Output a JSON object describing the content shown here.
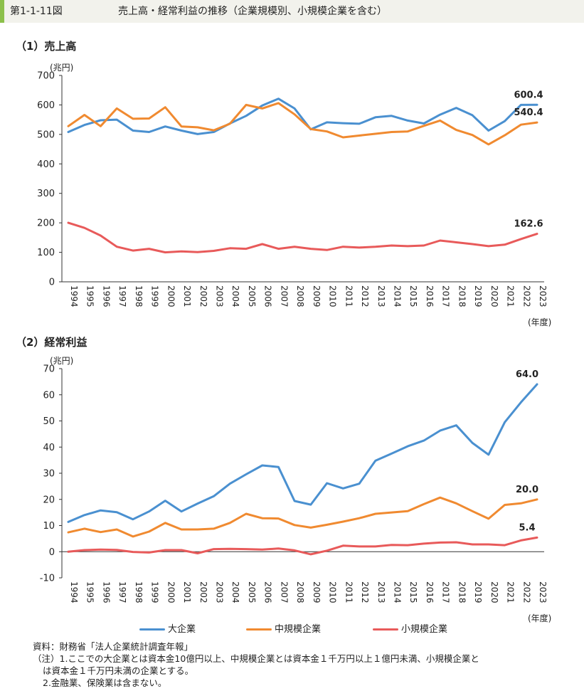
{
  "header": {
    "figure_label": "第1-1-11図",
    "figure_title": "売上高・経常利益の推移（企業規模別、小規模企業を含む）"
  },
  "colors": {
    "large": "#4a90d0",
    "medium": "#f08a30",
    "small": "#e85a5a",
    "header_bg": "#f2f2ec",
    "accent": "#8cc04b"
  },
  "legend": [
    {
      "key": "large",
      "label": "大企業"
    },
    {
      "key": "medium",
      "label": "中規模企業"
    },
    {
      "key": "small",
      "label": "小規模企業"
    }
  ],
  "notes": {
    "source": "資料：財務省「法人企業統計調査年報」",
    "note1a": "（注）1.ここでの大企業とは資本金10億円以上、中規模企業とは資本金１千万円以上１億円未満、小規模企業と",
    "note1b": "は資本金１千万円未満の企業とする。",
    "note2": "2.金融業、保険業は含まない。"
  },
  "chart_data": [
    {
      "id": "sales",
      "type": "line",
      "title": "（1）売上高",
      "ylabel": "(兆円)",
      "xlabel": "(年度)",
      "ylim": [
        0,
        700
      ],
      "yticks": [
        0,
        100,
        200,
        300,
        400,
        500,
        600,
        700
      ],
      "categories": [
        "1994",
        "1995",
        "1996",
        "1997",
        "1998",
        "1999",
        "2000",
        "2001",
        "2002",
        "2003",
        "2004",
        "2005",
        "2006",
        "2007",
        "2008",
        "2009",
        "2010",
        "2011",
        "2012",
        "2013",
        "2014",
        "2015",
        "2016",
        "2017",
        "2018",
        "2019",
        "2020",
        "2021",
        "2022",
        "2023"
      ],
      "series": [
        {
          "key": "large",
          "name": "大企業",
          "end_label": "600.4",
          "values": [
            508,
            532,
            548,
            550,
            513,
            508,
            527,
            513,
            501,
            508,
            537,
            563,
            598,
            621,
            588,
            517,
            541,
            538,
            536,
            558,
            563,
            547,
            537,
            567,
            590,
            565,
            513,
            545,
            600,
            600.4
          ]
        },
        {
          "key": "medium",
          "name": "中規模企業",
          "end_label": "540.4",
          "values": [
            528,
            566,
            528,
            588,
            553,
            554,
            592,
            527,
            524,
            514,
            536,
            600,
            588,
            606,
            568,
            518,
            510,
            490,
            496,
            502,
            508,
            510,
            529,
            547,
            515,
            498,
            466,
            497,
            533,
            540.4
          ]
        },
        {
          "key": "small",
          "name": "小規模企業",
          "end_label": "162.6",
          "values": [
            200,
            183,
            157,
            119,
            106,
            112,
            100,
            103,
            101,
            105,
            114,
            112,
            128,
            112,
            119,
            112,
            108,
            119,
            116,
            119,
            123,
            121,
            123,
            140,
            134,
            128,
            121,
            126,
            145,
            162.6
          ]
        }
      ]
    },
    {
      "id": "profit",
      "type": "line",
      "title": "（2）経常利益",
      "ylabel": "(兆円)",
      "xlabel": "(年度)",
      "ylim": [
        -10,
        70
      ],
      "yticks": [
        -10,
        0,
        10,
        20,
        30,
        40,
        50,
        60,
        70
      ],
      "categories": [
        "1994",
        "1995",
        "1996",
        "1997",
        "1998",
        "1999",
        "2000",
        "2001",
        "2002",
        "2003",
        "2004",
        "2005",
        "2006",
        "2007",
        "2008",
        "2009",
        "2010",
        "2011",
        "2012",
        "2013",
        "2014",
        "2015",
        "2016",
        "2017",
        "2018",
        "2019",
        "2020",
        "2021",
        "2022",
        "2023"
      ],
      "series": [
        {
          "key": "large",
          "name": "大企業",
          "end_label": "64.0",
          "values": [
            11.4,
            14.0,
            15.8,
            15.1,
            12.4,
            15.4,
            19.5,
            15.4,
            18.4,
            21.2,
            26.0,
            29.6,
            33.0,
            32.4,
            19.4,
            18.0,
            26.2,
            24.2,
            26.0,
            34.8,
            37.5,
            40.3,
            42.5,
            46.3,
            48.3,
            41.6,
            37.1,
            49.5,
            57.1,
            64.0
          ]
        },
        {
          "key": "medium",
          "name": "中規模企業",
          "end_label": "20.0",
          "values": [
            7.4,
            8.8,
            7.5,
            8.5,
            5.8,
            7.7,
            11.0,
            8.5,
            8.5,
            8.8,
            11.0,
            14.5,
            12.8,
            12.7,
            10.2,
            9.2,
            10.3,
            11.5,
            12.8,
            14.5,
            15.0,
            15.5,
            18.2,
            20.7,
            18.5,
            15.5,
            12.6,
            17.9,
            18.5,
            20.0
          ]
        },
        {
          "key": "small",
          "name": "小規模企業",
          "end_label": "5.4",
          "values": [
            0.0,
            0.6,
            0.8,
            0.7,
            -0.1,
            -0.3,
            0.6,
            0.6,
            -0.6,
            1.0,
            1.1,
            1.0,
            0.8,
            1.2,
            0.5,
            -1.0,
            0.4,
            2.3,
            2.0,
            2.0,
            2.6,
            2.5,
            3.1,
            3.5,
            3.6,
            2.8,
            2.8,
            2.5,
            4.3,
            5.4
          ]
        }
      ]
    }
  ]
}
